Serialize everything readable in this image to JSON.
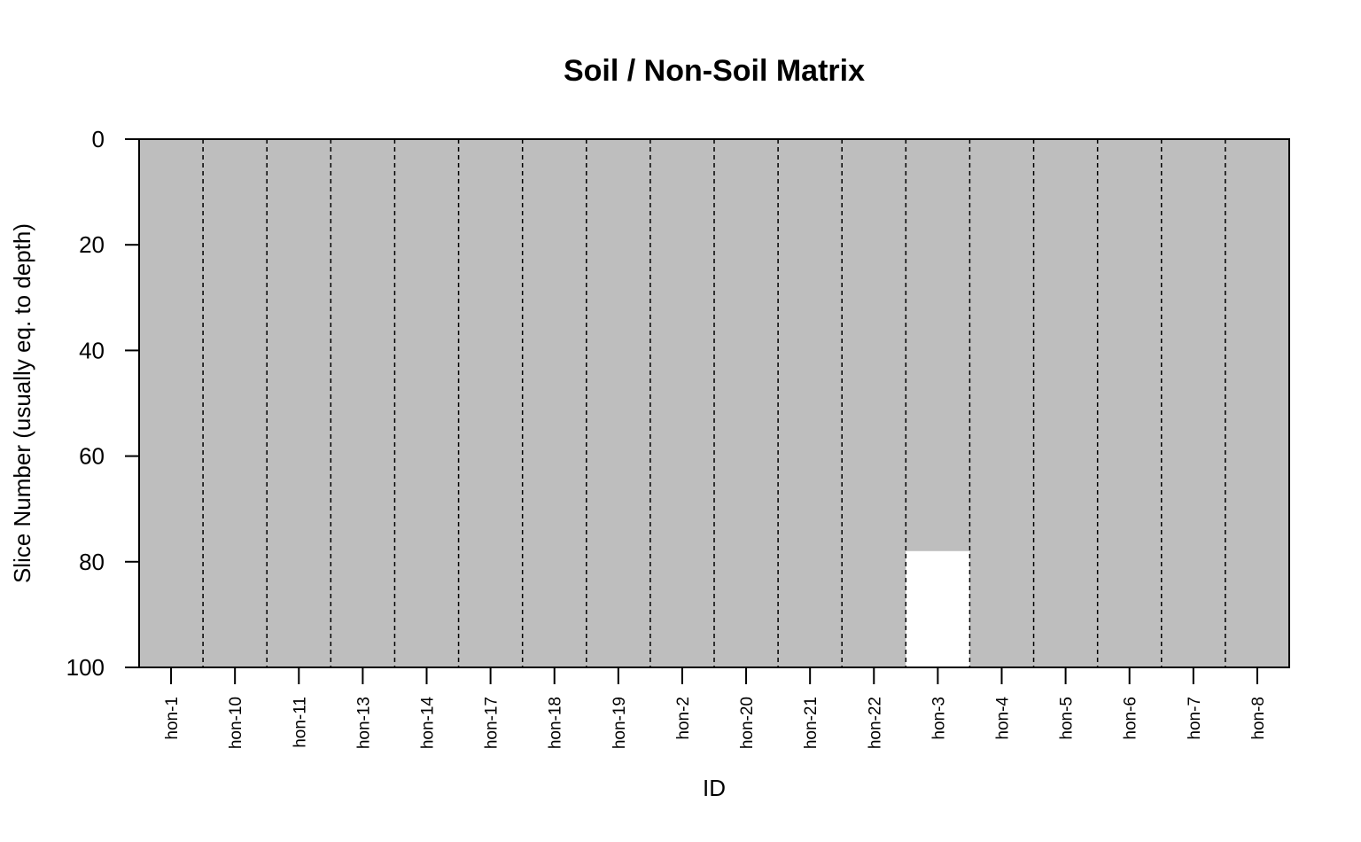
{
  "chart_data": {
    "type": "heatmap",
    "title": "Soil / Non-Soil Matrix",
    "xlabel": "ID",
    "ylabel": "Slice Number (usually eq. to depth)",
    "categories": [
      "hon-1",
      "hon-10",
      "hon-11",
      "hon-13",
      "hon-14",
      "hon-17",
      "hon-18",
      "hon-19",
      "hon-2",
      "hon-20",
      "hon-21",
      "hon-22",
      "hon-3",
      "hon-4",
      "hon-5",
      "hon-6",
      "hon-7",
      "hon-8"
    ],
    "ylim": [
      0,
      100
    ],
    "y_reversed": true,
    "yticks": [
      0,
      20,
      40,
      60,
      80,
      100
    ],
    "soil_depth_max": [
      100,
      100,
      100,
      100,
      100,
      100,
      100,
      100,
      100,
      100,
      100,
      100,
      78,
      100,
      100,
      100,
      100,
      100
    ],
    "colors": {
      "soil": "#bebebe",
      "non_soil": "#ffffff",
      "separator": "#000000"
    },
    "separators": "dashed vertical lines between IDs",
    "grid": false
  }
}
